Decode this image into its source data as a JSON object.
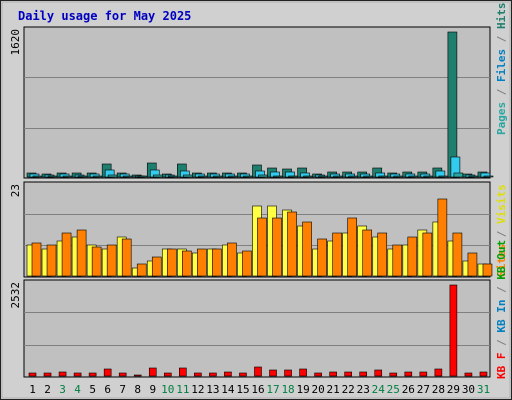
{
  "window": {
    "title": "Daily usage for May 2025"
  },
  "chart_data": [
    {
      "type": "bar",
      "panel": "pages-files-hits",
      "axis_max_label": "1620",
      "legend": [
        "Pages",
        "Files",
        "Hits"
      ],
      "categories": [
        "1",
        "2",
        "3",
        "4",
        "5",
        "6",
        "7",
        "8",
        "9",
        "10",
        "11",
        "12",
        "13",
        "14",
        "15",
        "16",
        "17",
        "18",
        "19",
        "20",
        "21",
        "22",
        "23",
        "24",
        "25",
        "26",
        "27",
        "28",
        "29",
        "30",
        "31"
      ],
      "series": [
        {
          "name": "Hits",
          "color": "#1f7f6f",
          "values": [
            50,
            30,
            50,
            40,
            40,
            150,
            50,
            25,
            160,
            30,
            140,
            50,
            50,
            50,
            50,
            130,
            100,
            90,
            100,
            30,
            60,
            60,
            60,
            100,
            50,
            60,
            60,
            100,
            1620,
            30,
            60
          ]
        },
        {
          "name": "Files",
          "color": "#33ccee",
          "values": [
            30,
            20,
            30,
            20,
            30,
            80,
            30,
            10,
            80,
            20,
            70,
            30,
            30,
            30,
            30,
            70,
            60,
            60,
            50,
            20,
            30,
            30,
            30,
            50,
            30,
            30,
            30,
            70,
            220,
            20,
            40
          ]
        },
        {
          "name": "Pages",
          "color": "#2aa6a0",
          "values": [
            10,
            8,
            10,
            8,
            10,
            20,
            10,
            5,
            20,
            8,
            20,
            10,
            10,
            10,
            10,
            20,
            15,
            15,
            15,
            8,
            10,
            10,
            10,
            15,
            10,
            10,
            10,
            15,
            40,
            8,
            10
          ]
        }
      ],
      "ylim": [
        0,
        1620
      ]
    },
    {
      "type": "bar",
      "panel": "visits-sites",
      "axis_max_label": "23",
      "legend": [
        "Visits",
        "Sites"
      ],
      "categories": [
        "1",
        "2",
        "3",
        "4",
        "5",
        "6",
        "7",
        "8",
        "9",
        "10",
        "11",
        "12",
        "13",
        "14",
        "15",
        "16",
        "17",
        "18",
        "19",
        "20",
        "21",
        "22",
        "23",
        "24",
        "25",
        "26",
        "27",
        "28",
        "29",
        "30",
        "31"
      ],
      "series": [
        {
          "name": "Visits",
          "color": "#ffff44",
          "values": [
            8,
            7,
            9,
            10,
            8,
            7,
            10,
            2,
            4,
            7,
            7,
            6,
            7,
            8,
            6,
            18,
            18,
            17,
            13,
            7,
            9,
            11,
            13,
            10,
            7,
            8,
            12,
            14,
            9,
            4,
            3
          ]
        },
        {
          "name": "Sites",
          "color": "#ff8000",
          "values": [
            8.5,
            8,
            11,
            12,
            7.5,
            8,
            9.5,
            3,
            5,
            7,
            6.5,
            7,
            7,
            8.5,
            6.5,
            15,
            15,
            16.5,
            14,
            9.5,
            11,
            15,
            12,
            11,
            8,
            10,
            11,
            20,
            11,
            6,
            3
          ]
        }
      ],
      "ylim": [
        0,
        23
      ]
    },
    {
      "type": "bar",
      "panel": "kb-traffic",
      "axis_max_label": "2532",
      "legend": [
        "KB F",
        "KB In",
        "KB Out"
      ],
      "categories": [
        "1",
        "2",
        "3",
        "4",
        "5",
        "6",
        "7",
        "8",
        "9",
        "10",
        "11",
        "12",
        "13",
        "14",
        "15",
        "16",
        "17",
        "18",
        "19",
        "20",
        "21",
        "22",
        "23",
        "24",
        "25",
        "26",
        "27",
        "28",
        "29",
        "30",
        "31"
      ],
      "series": [
        {
          "name": "KB F",
          "color": "#ff0000",
          "values": [
            90,
            90,
            100,
            90,
            90,
            200,
            90,
            30,
            230,
            80,
            210,
            90,
            90,
            100,
            90,
            250,
            180,
            180,
            200,
            90,
            110,
            110,
            110,
            180,
            90,
            100,
            110,
            190,
            2532,
            70,
            120
          ]
        }
      ],
      "ylim": [
        0,
        2532
      ]
    }
  ],
  "x_axis": {
    "labels": [
      "1",
      "2",
      "3",
      "4",
      "5",
      "6",
      "7",
      "8",
      "9",
      "10",
      "11",
      "12",
      "13",
      "14",
      "15",
      "16",
      "17",
      "18",
      "19",
      "20",
      "21",
      "22",
      "23",
      "24",
      "25",
      "26",
      "27",
      "28",
      "29",
      "30",
      "31"
    ],
    "weekend_days": [
      "3",
      "4",
      "10",
      "11",
      "17",
      "18",
      "24",
      "25",
      "31"
    ],
    "weekday_color": "#000000",
    "weekend_color": "#008040"
  },
  "side_labels": {
    "top": [
      {
        "text": "Pages",
        "color": "#2aa6a0"
      },
      {
        "text": " / ",
        "color": "#808080"
      },
      {
        "text": "Files",
        "color": "#0080c0"
      },
      {
        "text": " / ",
        "color": "#808080"
      },
      {
        "text": "Hits",
        "color": "#1f7f6f"
      }
    ],
    "middle": [
      {
        "text": "Sites",
        "color": "#ff8000"
      },
      {
        "text": " / ",
        "color": "#808080"
      },
      {
        "text": "Visits",
        "color": "#e0e000"
      }
    ],
    "bottom": [
      {
        "text": "KB F",
        "color": "#ff0000"
      },
      {
        "text": " / ",
        "color": "#808080"
      },
      {
        "text": "KB In",
        "color": "#0080c0"
      },
      {
        "text": " / ",
        "color": "#808080"
      },
      {
        "text": "KB Out",
        "color": "#00a000"
      }
    ]
  },
  "colors": {
    "panel_bg": "#c0c0c0",
    "grid": "#808080",
    "title": "#0000c0"
  }
}
